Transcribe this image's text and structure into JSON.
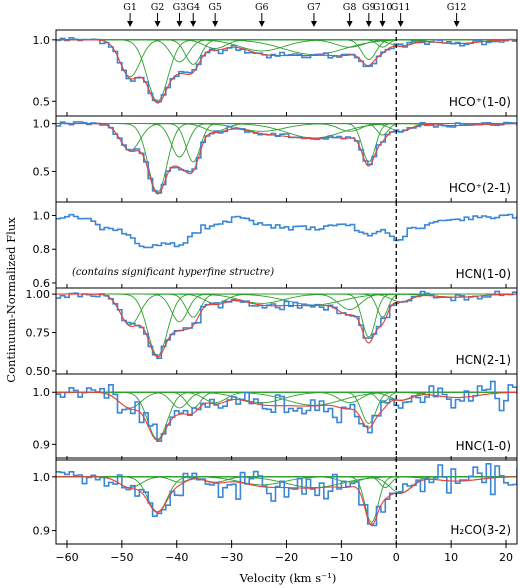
{
  "chart_data": {
    "type": "line",
    "xlabel": "Velocity (km s⁻¹)",
    "ylabel": "Continuum-Normalized Flux",
    "xlim": [
      -62,
      22
    ],
    "x_ticks": [
      -60,
      -50,
      -40,
      -30,
      -20,
      -10,
      0,
      10,
      20
    ],
    "vline_x": 0,
    "colors": {
      "data": "#3a87d6",
      "total_fit": "#e8413a",
      "components": "#2ca02c",
      "vline": "#000000"
    },
    "components": [
      {
        "name": "G1",
        "v": -48.5
      },
      {
        "name": "G2",
        "v": -43.5
      },
      {
        "name": "G3",
        "v": -39.5
      },
      {
        "name": "G4",
        "v": -37.0
      },
      {
        "name": "G5",
        "v": -33.0
      },
      {
        "name": "G6",
        "v": -24.5
      },
      {
        "name": "G7",
        "v": -15.0
      },
      {
        "name": "G8",
        "v": -8.5
      },
      {
        "name": "G9",
        "v": -5.0
      },
      {
        "name": "G10",
        "v": -2.5
      },
      {
        "name": "G11",
        "v": 0.8
      },
      {
        "name": "G12",
        "v": 11.0
      }
    ],
    "panels": [
      {
        "label": "HCO⁺(1-0)",
        "ylim": [
          0.38,
          1.08
        ],
        "yticks": [
          0.5,
          1.0
        ],
        "ytick_labels": [
          "0.5",
          "1.0"
        ],
        "note": "",
        "fit": true,
        "noise": 0.012,
        "comps": [
          {
            "v": -48.5,
            "depth": 0.3,
            "sigma": 1.8
          },
          {
            "v": -43.5,
            "depth": 0.5,
            "sigma": 1.9
          },
          {
            "v": -39.5,
            "depth": 0.18,
            "sigma": 1.6
          },
          {
            "v": -37.0,
            "depth": 0.2,
            "sigma": 1.4
          },
          {
            "v": -33.0,
            "depth": 0.07,
            "sigma": 2.0
          },
          {
            "v": -24.5,
            "depth": 0.09,
            "sigma": 4.0
          },
          {
            "v": -15.0,
            "depth": 0.12,
            "sigma": 5.5
          },
          {
            "v": -8.5,
            "depth": 0.06,
            "sigma": 2.5
          },
          {
            "v": -5.0,
            "depth": 0.16,
            "sigma": 1.3
          },
          {
            "v": -2.5,
            "depth": 0.06,
            "sigma": 1.0
          },
          {
            "v": 0.8,
            "depth": 0.05,
            "sigma": 2.0
          },
          {
            "v": 11.0,
            "depth": 0.03,
            "sigma": 4.0
          }
        ]
      },
      {
        "label": "HCO⁺(2-1)",
        "ylim": [
          0.18,
          1.08
        ],
        "yticks": [
          0.5,
          1.0
        ],
        "ytick_labels": [
          "0.5",
          "1.0"
        ],
        "note": "",
        "fit": true,
        "noise": 0.012,
        "comps": [
          {
            "v": -48.5,
            "depth": 0.28,
            "sigma": 1.8
          },
          {
            "v": -43.5,
            "depth": 0.72,
            "sigma": 1.7
          },
          {
            "v": -39.5,
            "depth": 0.35,
            "sigma": 1.5
          },
          {
            "v": -37.0,
            "depth": 0.4,
            "sigma": 1.3
          },
          {
            "v": -33.0,
            "depth": 0.08,
            "sigma": 2.0
          },
          {
            "v": -24.5,
            "depth": 0.08,
            "sigma": 4.0
          },
          {
            "v": -15.0,
            "depth": 0.15,
            "sigma": 5.0
          },
          {
            "v": -8.5,
            "depth": 0.08,
            "sigma": 2.0
          },
          {
            "v": -5.0,
            "depth": 0.4,
            "sigma": 1.2
          },
          {
            "v": -2.5,
            "depth": 0.12,
            "sigma": 1.0
          },
          {
            "v": 0.8,
            "depth": 0.08,
            "sigma": 1.8
          },
          {
            "v": 11.0,
            "depth": 0.02,
            "sigma": 4.0
          }
        ]
      },
      {
        "label": "HCN(1-0)",
        "ylim": [
          0.57,
          1.08
        ],
        "yticks": [
          0.6,
          0.8,
          1.0
        ],
        "ytick_labels": [
          "0.6",
          "0.8",
          "1.0"
        ],
        "note": "(contains significant hyperfine structre)",
        "fit": false,
        "noise": 0.01,
        "comps": [
          {
            "v": -52.0,
            "depth": 0.08,
            "sigma": 2.5
          },
          {
            "v": -45.0,
            "depth": 0.18,
            "sigma": 3.0
          },
          {
            "v": -39.0,
            "depth": 0.15,
            "sigma": 2.2
          },
          {
            "v": -33.0,
            "depth": 0.06,
            "sigma": 2.0
          },
          {
            "v": -22.0,
            "depth": 0.06,
            "sigma": 4.0
          },
          {
            "v": -13.0,
            "depth": 0.07,
            "sigma": 4.0
          },
          {
            "v": -5.0,
            "depth": 0.1,
            "sigma": 2.0
          },
          {
            "v": 0.0,
            "depth": 0.13,
            "sigma": 1.5
          },
          {
            "v": 4.0,
            "depth": 0.06,
            "sigma": 2.5
          },
          {
            "v": 11.0,
            "depth": 0.02,
            "sigma": 4.0
          }
        ]
      },
      {
        "label": "HCN(2-1)",
        "ylim": [
          0.48,
          1.04
        ],
        "yticks": [
          0.5,
          0.75,
          1.0
        ],
        "ytick_labels": [
          "0.50",
          "0.75",
          "1.00"
        ],
        "note": "",
        "fit": true,
        "noise": 0.012,
        "comps": [
          {
            "v": -48.5,
            "depth": 0.2,
            "sigma": 1.8
          },
          {
            "v": -43.5,
            "depth": 0.4,
            "sigma": 1.8
          },
          {
            "v": -39.5,
            "depth": 0.18,
            "sigma": 1.5
          },
          {
            "v": -37.0,
            "depth": 0.15,
            "sigma": 1.3
          },
          {
            "v": -33.0,
            "depth": 0.06,
            "sigma": 2.0
          },
          {
            "v": -24.5,
            "depth": 0.06,
            "sigma": 4.0
          },
          {
            "v": -15.0,
            "depth": 0.07,
            "sigma": 5.0
          },
          {
            "v": -8.5,
            "depth": 0.1,
            "sigma": 2.0
          },
          {
            "v": -5.0,
            "depth": 0.28,
            "sigma": 1.2
          },
          {
            "v": -2.5,
            "depth": 0.15,
            "sigma": 1.0
          },
          {
            "v": 0.8,
            "depth": 0.05,
            "sigma": 1.8
          },
          {
            "v": 11.0,
            "depth": 0.02,
            "sigma": 4.0
          }
        ]
      },
      {
        "label": "HNC(1-0)",
        "ylim": [
          0.87,
          1.035
        ],
        "yticks": [
          0.9,
          1.0
        ],
        "ytick_labels": [
          "0.9",
          "1.0"
        ],
        "note": "",
        "fit": true,
        "noise": 0.01,
        "comps": [
          {
            "v": -48.5,
            "depth": 0.03,
            "sigma": 2.0
          },
          {
            "v": -43.5,
            "depth": 0.09,
            "sigma": 1.8
          },
          {
            "v": -39.5,
            "depth": 0.03,
            "sigma": 1.5
          },
          {
            "v": -37.0,
            "depth": 0.03,
            "sigma": 1.3
          },
          {
            "v": -33.0,
            "depth": 0.02,
            "sigma": 2.0
          },
          {
            "v": -24.5,
            "depth": 0.02,
            "sigma": 4.0
          },
          {
            "v": -15.0,
            "depth": 0.025,
            "sigma": 5.0
          },
          {
            "v": -8.5,
            "depth": 0.02,
            "sigma": 2.0
          },
          {
            "v": -5.0,
            "depth": 0.06,
            "sigma": 1.3
          },
          {
            "v": -2.5,
            "depth": 0.02,
            "sigma": 1.0
          },
          {
            "v": 0.8,
            "depth": 0.015,
            "sigma": 2.0
          },
          {
            "v": 11.0,
            "depth": 0.01,
            "sigma": 4.0
          }
        ]
      },
      {
        "label": "H₂CO(3-2)",
        "ylim": [
          0.875,
          1.035
        ],
        "yticks": [
          0.9,
          1.0
        ],
        "ytick_labels": [
          "0.9",
          "1.0"
        ],
        "note": "",
        "fit": true,
        "noise": 0.012,
        "comps": [
          {
            "v": -48.5,
            "depth": 0.02,
            "sigma": 2.0
          },
          {
            "v": -43.5,
            "depth": 0.065,
            "sigma": 1.8
          },
          {
            "v": -39.5,
            "depth": 0.01,
            "sigma": 1.5
          },
          {
            "v": -33.0,
            "depth": 0.01,
            "sigma": 2.0
          },
          {
            "v": -24.5,
            "depth": 0.015,
            "sigma": 4.0
          },
          {
            "v": -15.0,
            "depth": 0.02,
            "sigma": 5.0
          },
          {
            "v": -8.5,
            "depth": 0.01,
            "sigma": 2.0
          },
          {
            "v": -4.5,
            "depth": 0.085,
            "sigma": 1.2
          },
          {
            "v": -2.0,
            "depth": 0.02,
            "sigma": 1.0
          },
          {
            "v": 0.8,
            "depth": 0.03,
            "sigma": 2.0
          },
          {
            "v": 11.0,
            "depth": 0.008,
            "sigma": 4.0
          }
        ]
      }
    ]
  }
}
